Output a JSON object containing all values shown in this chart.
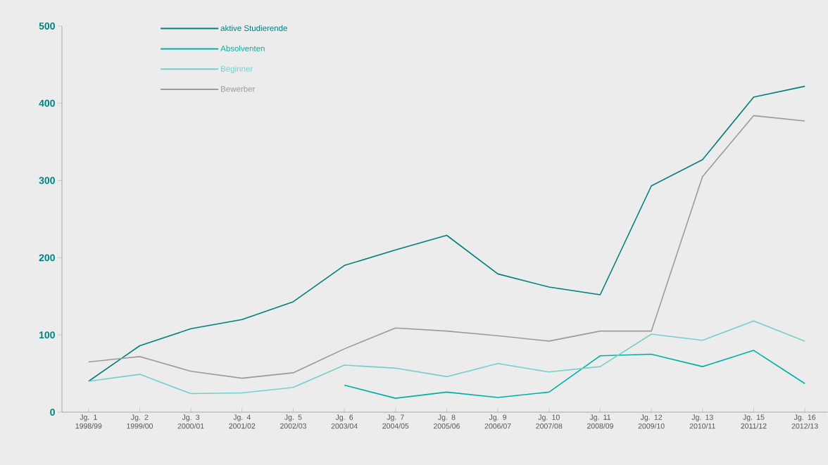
{
  "chart_data": {
    "type": "line",
    "categories": [
      "Jg. 1 1998/99",
      "Jg. 2 1999/00",
      "Jg. 3 2000/01",
      "Jg. 4 2001/02",
      "Jg. 5 2002/03",
      "Jg. 6 2003/04",
      "Jg. 7 2004/05",
      "Jg. 8 2005/06",
      "Jg. 9 2006/07",
      "Jg. 10 2007/08",
      "Jg. 11 2008/09",
      "Jg. 12 2009/10",
      "Jg. 13 2010/11",
      "Jg. 15 2011/12",
      "Jg. 16 2012/13"
    ],
    "series": [
      {
        "name": "aktive Studierende",
        "color": "#007f7b",
        "values": [
          40,
          86,
          108,
          120,
          143,
          190,
          210,
          229,
          179,
          162,
          152,
          293,
          327,
          408,
          422
        ]
      },
      {
        "name": "Absolventen",
        "color": "#00b0a8",
        "values": [
          null,
          null,
          null,
          null,
          null,
          35,
          18,
          26,
          19,
          26,
          73,
          75,
          59,
          80,
          37
        ]
      },
      {
        "name": "Beginner",
        "color": "#74cfca",
        "values": [
          40,
          49,
          24,
          25,
          32,
          61,
          57,
          46,
          63,
          52,
          59,
          101,
          93,
          118,
          92
        ]
      },
      {
        "name": "Bewerber",
        "color": "#9b9b9b",
        "values": [
          65,
          72,
          53,
          44,
          51,
          82,
          109,
          105,
          99,
          92,
          105,
          105,
          305,
          384,
          377
        ]
      }
    ],
    "ylim": [
      0,
      500
    ],
    "yticks": [
      0,
      100,
      200,
      300,
      400,
      500
    ],
    "grid": false,
    "legend": "top left",
    "marker": "none",
    "line_style": "solid"
  }
}
